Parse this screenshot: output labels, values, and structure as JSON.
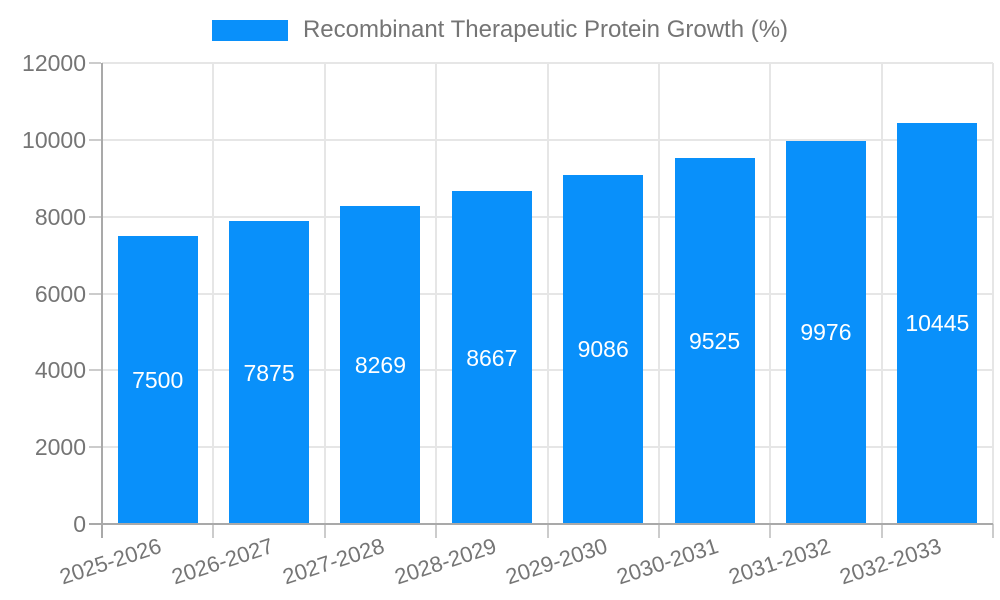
{
  "chart_data": {
    "type": "bar",
    "title": "Recombinant Therapeutic Protein Growth (%)",
    "categories": [
      "2025-2026",
      "2026-2027",
      "2027-2028",
      "2028-2029",
      "2029-2030",
      "2030-2031",
      "2031-2032",
      "2032-2033"
    ],
    "values": [
      7500,
      7875,
      8269,
      8667,
      9086,
      9525,
      9976,
      10445
    ],
    "xlabel": "",
    "ylabel": "",
    "ylim": [
      0,
      12000
    ],
    "yticks": [
      0,
      2000,
      4000,
      6000,
      8000,
      10000,
      12000
    ],
    "grid": true,
    "legend_position": "top-center",
    "x_label_rotation_deg": -18,
    "value_label_position": "inside-center"
  },
  "colors": {
    "bar": "#0990FA",
    "axis_text": "#757575",
    "value_label_text": "#FFFFFF",
    "gridline": "#E6E6E6",
    "axis_line": "#A9A9A9",
    "tick_mark": "#CCCCCC",
    "background": "#FFFFFF"
  }
}
